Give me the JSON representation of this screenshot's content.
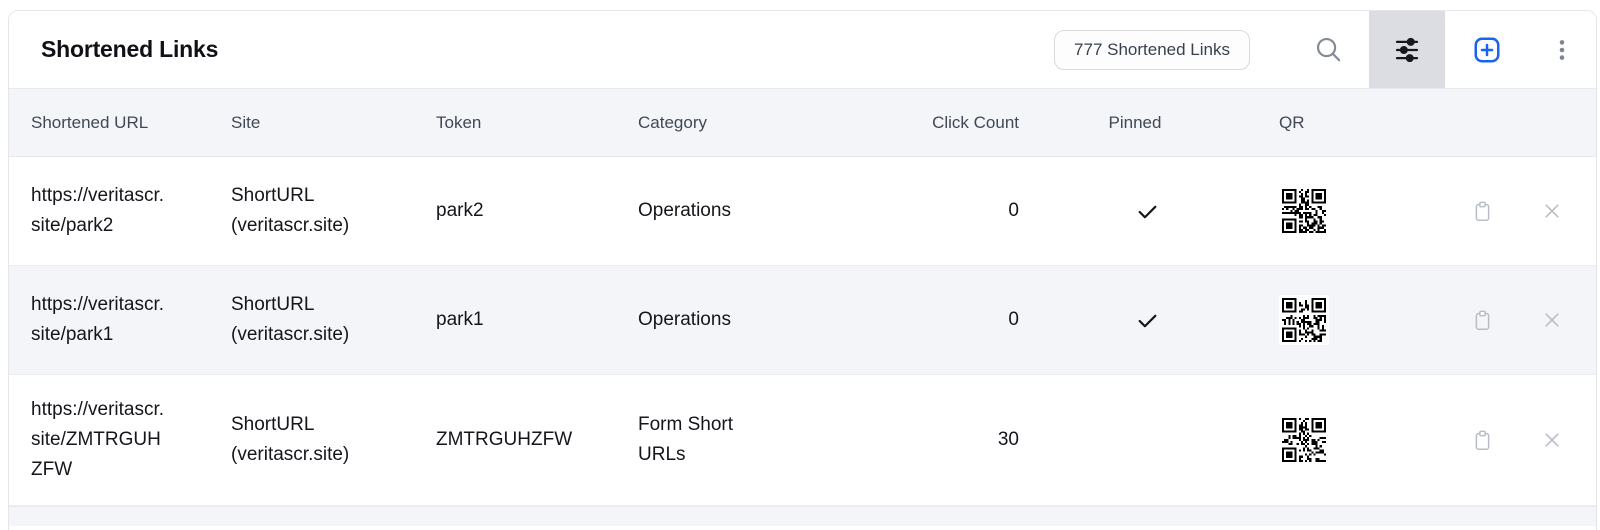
{
  "header": {
    "title": "Shortened Links",
    "count_badge": "777 Shortened Links"
  },
  "table": {
    "columns": [
      "Shortened URL",
      "Site",
      "Token",
      "Category",
      "Click Count",
      "Pinned",
      "QR"
    ],
    "rows": [
      {
        "url": "https://veritascr.site/park2",
        "site": "ShortURL (veritascr.site)",
        "token": "park2",
        "category": "Operations",
        "click_count": "0",
        "pinned": true
      },
      {
        "url": "https://veritascr.site/park1",
        "site": "ShortURL (veritascr.site)",
        "token": "park1",
        "category": "Operations",
        "click_count": "0",
        "pinned": true
      },
      {
        "url": "https://veritascr.site/ZMTRGUHZFW",
        "site": "ShortURL (veritascr.site)",
        "token": "ZMTRGUHZFW",
        "category": "Form Short URLs",
        "click_count": "30",
        "pinned": false
      }
    ]
  },
  "colors": {
    "accent_blue": "#1a63f0",
    "row_alt_bg": "#f4f5f8",
    "filter_active_bg": "#dcdde2",
    "muted_icon": "#b8bcc6",
    "gray_icon": "#7e8492"
  }
}
